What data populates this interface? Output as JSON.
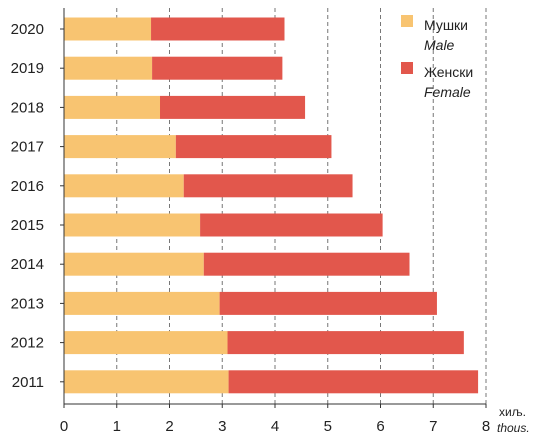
{
  "chart_data": {
    "type": "bar",
    "orientation": "horizontal",
    "stacked": true,
    "categories": [
      "2020",
      "2019",
      "2018",
      "2017",
      "2016",
      "2015",
      "2014",
      "2013",
      "2012",
      "2011"
    ],
    "series": [
      {
        "name": "Мушки",
        "name_en": "Male",
        "color": "#f8c471",
        "values": [
          1.65,
          1.67,
          1.82,
          2.12,
          2.27,
          2.58,
          2.65,
          2.95,
          3.1,
          3.12
        ]
      },
      {
        "name": "Женски",
        "name_en": "Female",
        "color": "#e2574c",
        "values": [
          2.53,
          2.47,
          2.75,
          2.95,
          3.2,
          3.46,
          3.9,
          4.12,
          4.48,
          4.73
        ]
      }
    ],
    "xlim": [
      0,
      8
    ],
    "xticks": [
      "0",
      "1",
      "2",
      "3",
      "4",
      "5",
      "6",
      "7",
      "8"
    ],
    "unit": "хиљ.",
    "unit_en": "thous.",
    "grid": "vertical-dashed",
    "legend_position": "top-right"
  }
}
